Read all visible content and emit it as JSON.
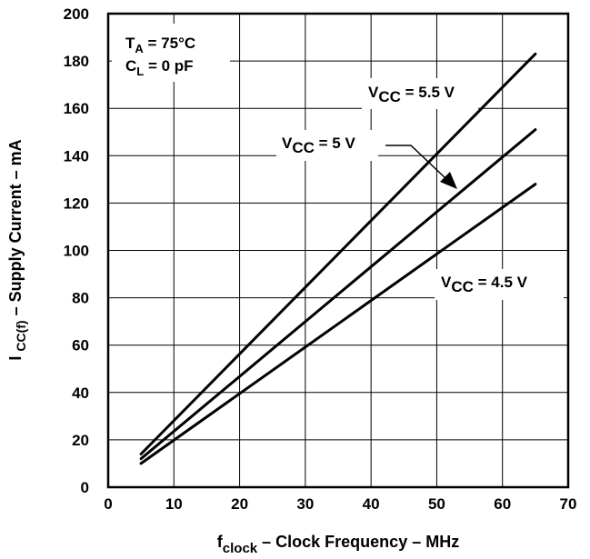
{
  "chart_data": {
    "type": "line",
    "title": "",
    "xlabel": {
      "main": "f",
      "sub": "clock",
      "rest": " – Clock Frequency – MHz"
    },
    "ylabel": {
      "main": "I ",
      "sub": "CC(f)",
      "rest": " – Supply Current – mA"
    },
    "xlim": [
      0,
      70
    ],
    "ylim": [
      0,
      200
    ],
    "x_ticks": [
      0,
      10,
      20,
      30,
      40,
      50,
      60,
      70
    ],
    "y_ticks": [
      0,
      20,
      40,
      60,
      80,
      100,
      120,
      140,
      160,
      180,
      200
    ],
    "grid": true,
    "conditions": [
      {
        "main": "T",
        "sub": "A",
        "rest": " = 75°C"
      },
      {
        "main": "C",
        "sub": "L",
        "rest": " = 0 pF"
      }
    ],
    "series": [
      {
        "name": "VCC = 5.5 V",
        "label": {
          "main": "V",
          "sub": "CC",
          "rest": " = 5.5 V"
        },
        "x": [
          5,
          65
        ],
        "y": [
          14,
          183
        ]
      },
      {
        "name": "VCC = 5 V",
        "label": {
          "main": "V",
          "sub": "CC",
          "rest": " = 5 V"
        },
        "x": [
          5,
          65
        ],
        "y": [
          12,
          151
        ]
      },
      {
        "name": "VCC = 4.5 V",
        "label": {
          "main": "V",
          "sub": "CC",
          "rest": " = 4.5 V"
        },
        "x": [
          5,
          65
        ],
        "y": [
          10,
          128
        ]
      }
    ],
    "line_color": "#000000"
  }
}
